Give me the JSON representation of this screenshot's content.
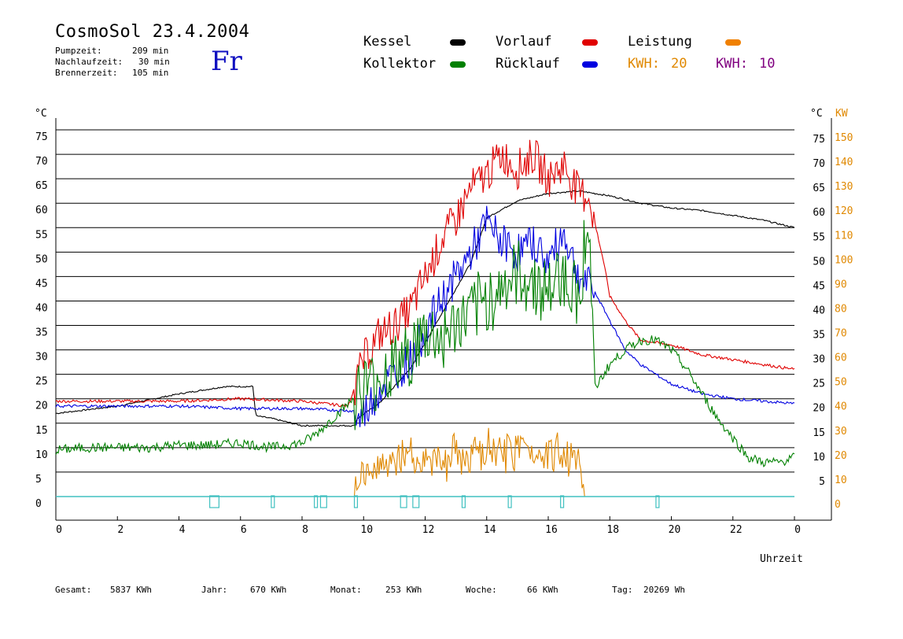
{
  "header": {
    "title": "CosmoSol 23.4.2004",
    "day": "Fr",
    "stats": [
      {
        "label": "Pumpzeit:",
        "value": "209 min"
      },
      {
        "label": "Nachlaufzeit:",
        "value": "30 min"
      },
      {
        "label": "Brennerzeit:",
        "value": "105 min"
      }
    ]
  },
  "legend": [
    {
      "name": "Kessel",
      "color": "#000000"
    },
    {
      "name": "Vorlauf",
      "color": "#e00000"
    },
    {
      "name": "Leistung",
      "color": "#f08000"
    },
    {
      "name": "Kollektor",
      "color": "#008000"
    },
    {
      "name": "Rücklauf",
      "color": "#0000e0"
    }
  ],
  "kwh": [
    {
      "label": "KWH:",
      "value": "20",
      "color": "#e08800"
    },
    {
      "label": "KWH:",
      "value": "10",
      "color": "#800080"
    }
  ],
  "footer": [
    {
      "label": "Gesamt:",
      "value": "5837 KWh"
    },
    {
      "label": "Jahr:",
      "value": "670 KWh"
    },
    {
      "label": "Monat:",
      "value": "253 KWh"
    },
    {
      "label": "Woche:",
      "value": "66 KWh"
    },
    {
      "label": "Tag:",
      "value": "20269 Wh"
    }
  ],
  "chart_data": {
    "type": "line",
    "xlabel": "Uhrzeit",
    "ylabel_left": "°C",
    "ylabel_right_temp": "°C",
    "ylabel_right_power": "KW",
    "xlim": [
      0,
      24
    ],
    "ylim": [
      0,
      75
    ],
    "y2lim": [
      0,
      150
    ],
    "x_ticks": [
      "0",
      "2",
      "4",
      "6",
      "8",
      "10",
      "12",
      "14",
      "16",
      "18",
      "20",
      "22",
      "0"
    ],
    "y_ticks": [
      0,
      5,
      10,
      15,
      20,
      25,
      30,
      35,
      40,
      45,
      50,
      55,
      60,
      65,
      70,
      75
    ],
    "y2_ticks": [
      0,
      10,
      20,
      30,
      40,
      50,
      60,
      70,
      80,
      90,
      100,
      110,
      120,
      130,
      140,
      150
    ],
    "grid": true,
    "series": [
      {
        "name": "Kessel",
        "color": "#000000",
        "x": [
          0,
          2,
          4,
          5.5,
          6.4,
          6.5,
          7,
          8,
          9.7,
          9.8,
          10.5,
          11.5,
          12.5,
          13.5,
          14,
          15,
          16,
          17,
          18,
          19,
          20,
          21,
          22,
          23,
          24
        ],
        "y": [
          17,
          18.5,
          21,
          22.5,
          22.5,
          16.5,
          16,
          14.5,
          14.5,
          16,
          19,
          26,
          37,
          48,
          57,
          60.5,
          62,
          62.5,
          61.5,
          60,
          59,
          58.5,
          57.5,
          56.5,
          55
        ]
      },
      {
        "name": "Vorlauf",
        "color": "#e00000",
        "x": [
          0,
          2,
          4,
          6,
          8,
          9.5,
          10,
          10.5,
          11,
          11.5,
          12,
          12.5,
          13,
          13.5,
          14,
          14.5,
          15,
          15.5,
          16,
          16.5,
          17,
          17.3,
          17.8,
          18,
          18.5,
          19,
          20,
          21,
          22,
          23,
          24
        ],
        "y": [
          19.5,
          19.5,
          19.5,
          20,
          19.5,
          18.5,
          28,
          33,
          35,
          38,
          45,
          52,
          57,
          63,
          66,
          70,
          67,
          70,
          65,
          68,
          62,
          62,
          48,
          41,
          36,
          32,
          31,
          29,
          28,
          27,
          26
        ]
      },
      {
        "name": "Rücklauf",
        "color": "#0000e0",
        "x": [
          0,
          2,
          4,
          6,
          8,
          9.7,
          9.8,
          10.5,
          11,
          11.5,
          12,
          12.5,
          13,
          13.5,
          14,
          14.5,
          15,
          15.5,
          16,
          16.5,
          17,
          17.5,
          18,
          18.5,
          19,
          20,
          21,
          22,
          23,
          24
        ],
        "y": [
          18.5,
          18.5,
          18.5,
          18,
          18,
          17.5,
          15,
          22,
          25,
          28,
          34,
          40,
          45,
          50,
          56,
          52,
          50,
          52,
          48,
          54,
          45,
          42,
          36,
          30,
          27,
          23,
          21,
          20,
          19.5,
          19
        ]
      },
      {
        "name": "Kollektor",
        "color": "#008000",
        "x": [
          0,
          1,
          2,
          3,
          4,
          5,
          6,
          7,
          8,
          8.5,
          9,
          9.5,
          10,
          10.5,
          11,
          11.5,
          12,
          12.5,
          13,
          13.5,
          14,
          14.5,
          15,
          15.5,
          16,
          16.5,
          17,
          17.3,
          17.5,
          18,
          18.5,
          19,
          19.5,
          20,
          20.5,
          21,
          21.5,
          22,
          22.5,
          23,
          23.5,
          24
        ],
        "y": [
          9.5,
          10,
          10,
          10,
          10.5,
          10.5,
          11,
          10,
          11,
          13,
          16,
          19,
          22,
          24,
          27,
          29,
          33,
          32,
          35,
          37,
          40,
          43,
          45,
          44,
          42,
          46,
          40,
          60,
          22,
          27,
          30,
          32,
          32,
          30,
          26,
          21,
          16,
          12,
          8,
          7,
          7,
          8
        ]
      },
      {
        "name": "Leistung",
        "color": "#e08800",
        "axis": "right",
        "x": [
          9.7,
          10,
          10.5,
          11,
          11.5,
          12,
          12.5,
          13,
          13.5,
          14,
          14.5,
          15,
          15.5,
          16,
          16.5,
          17,
          17.2
        ],
        "y": [
          0,
          8,
          10,
          12,
          14,
          10,
          12,
          14,
          12,
          16,
          14,
          18,
          16,
          16,
          14,
          12,
          0
        ]
      },
      {
        "name": "Kollektor pump",
        "color": "#40c0c0",
        "x": [
          5,
          5.3,
          7,
          7.1,
          8.4,
          8.5,
          8.6,
          8.8,
          9.7,
          9.8,
          11.2,
          11.4,
          11.6,
          11.8,
          13.2,
          13.3,
          14.7,
          14.8,
          16.4,
          16.5,
          19.5,
          19.6
        ],
        "y": [
          1,
          1,
          1,
          1,
          1,
          1,
          1,
          1,
          1,
          1,
          1,
          1,
          1,
          1,
          1,
          1,
          1,
          1,
          1,
          1,
          1,
          1
        ]
      }
    ]
  }
}
